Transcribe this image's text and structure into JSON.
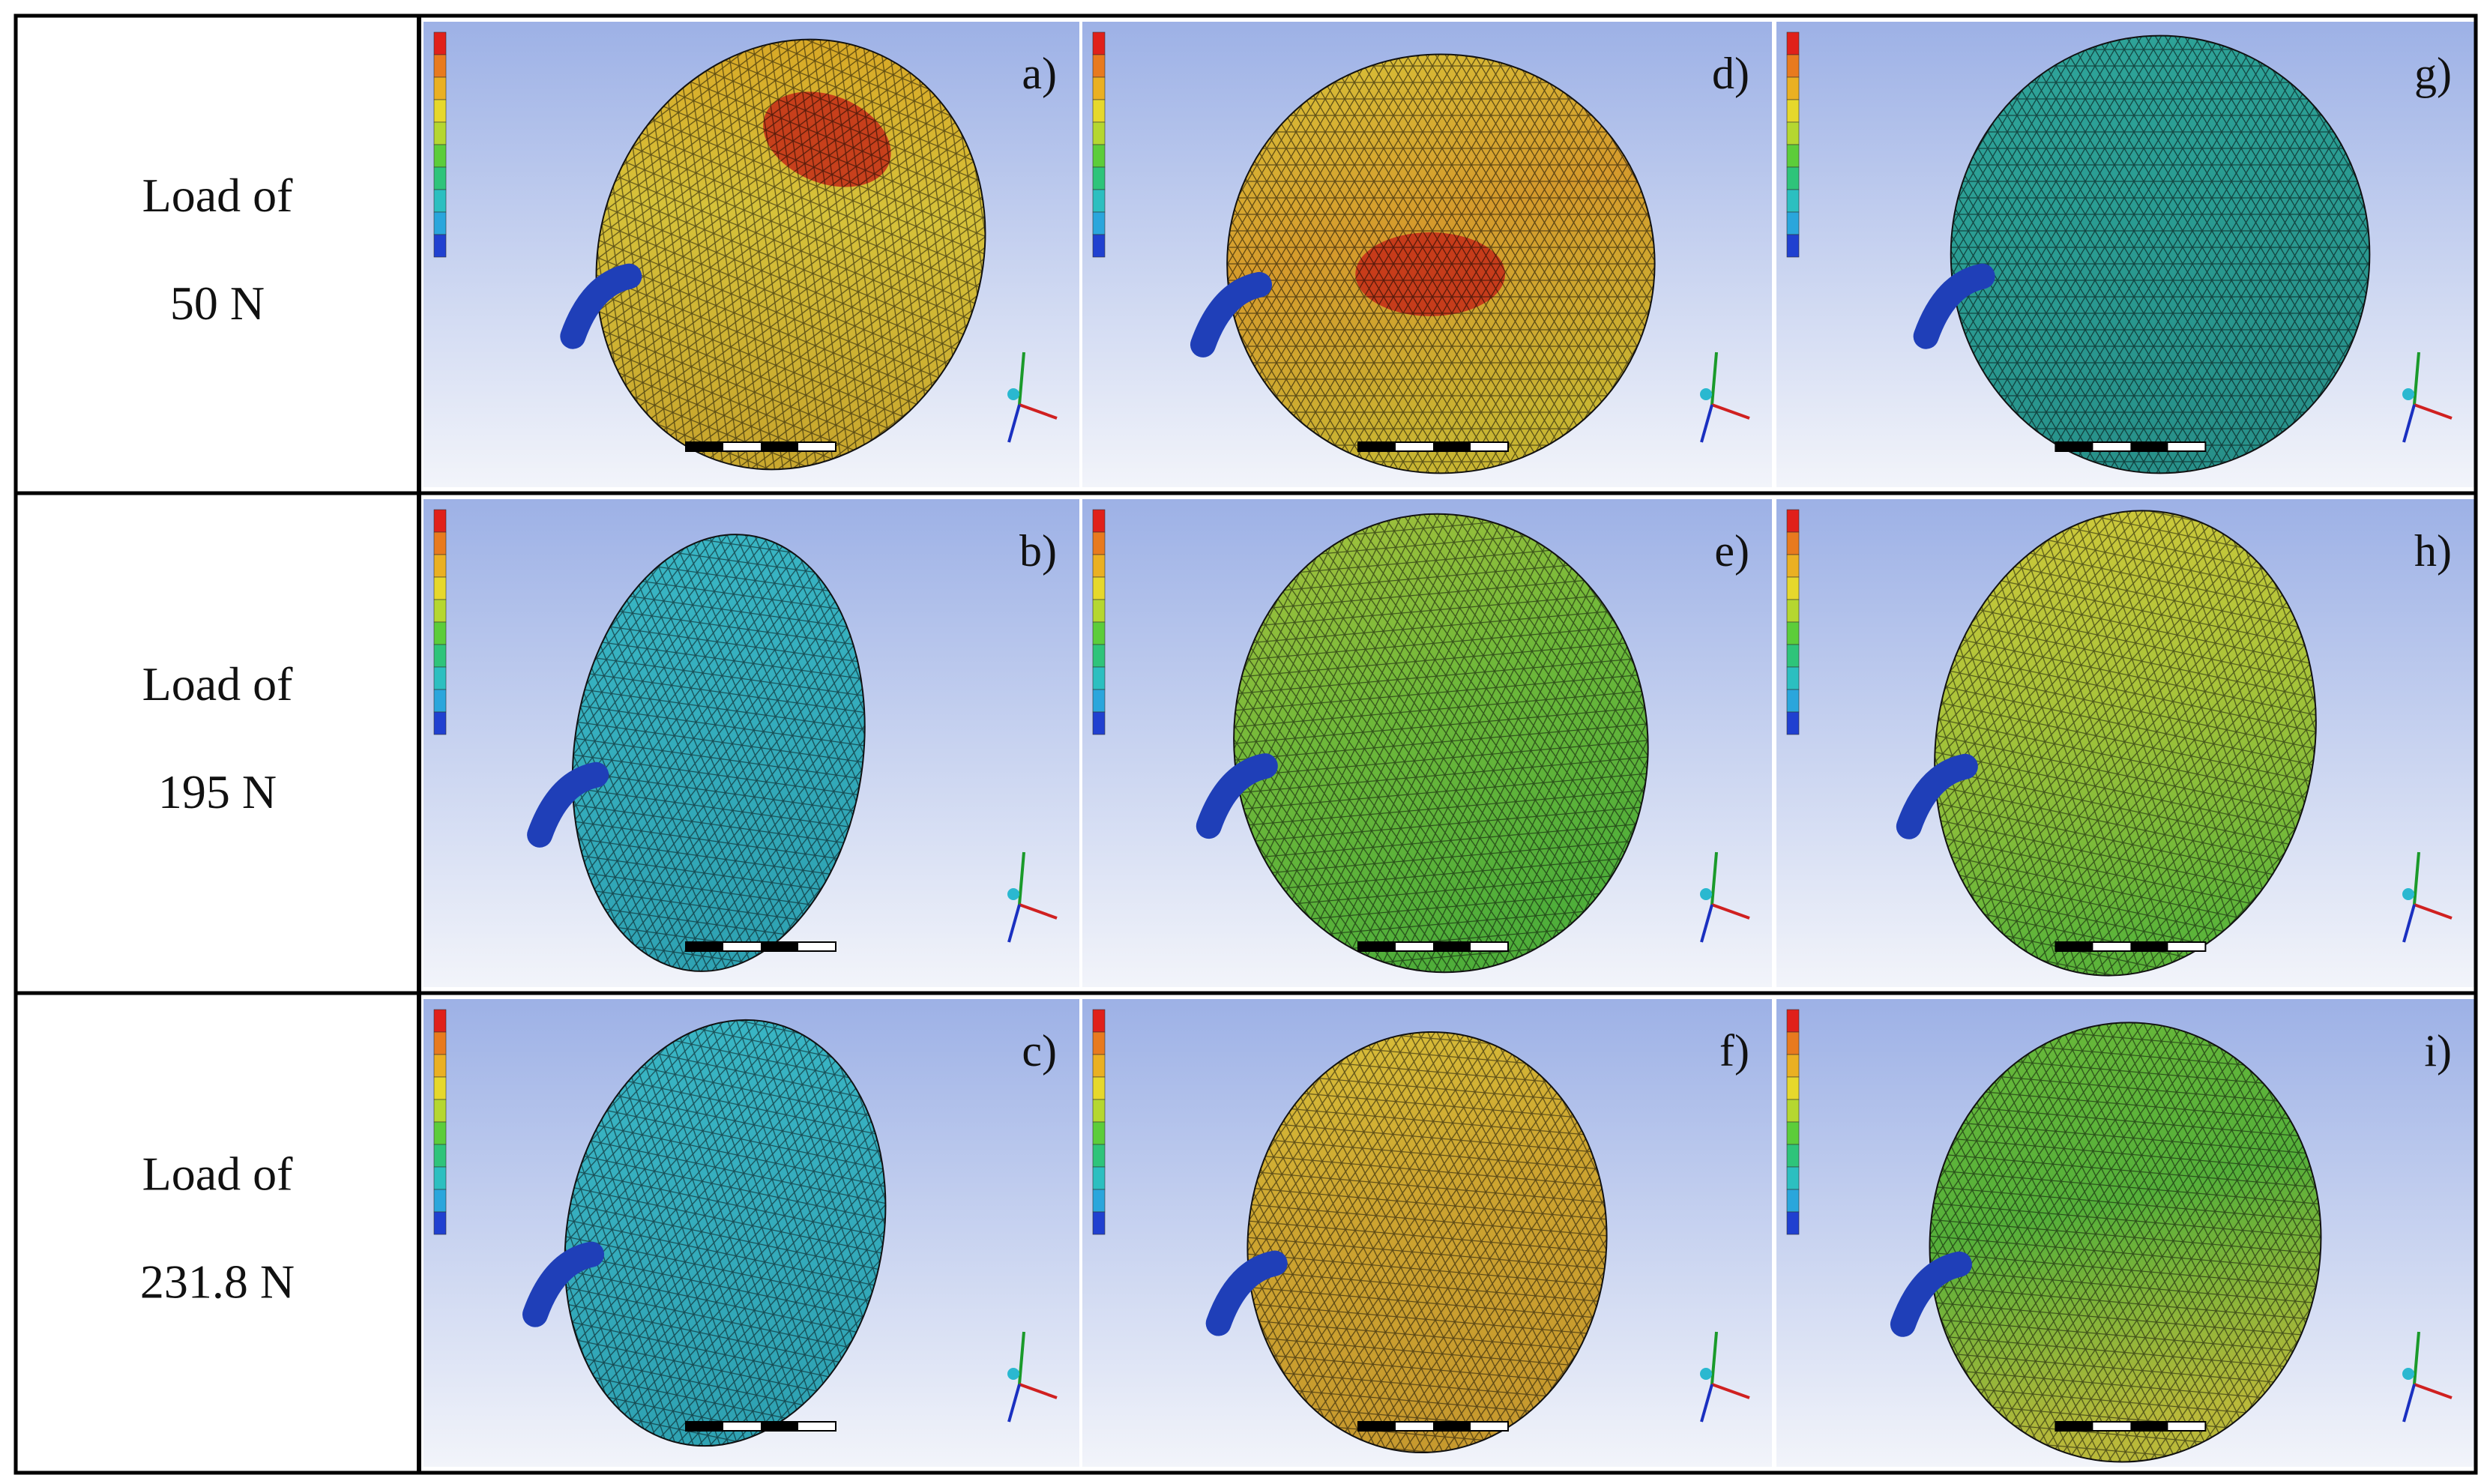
{
  "table": {
    "rows": [
      {
        "label": [
          "Load of",
          "50 N"
        ],
        "panels": [
          "a)",
          "d)",
          "g)"
        ]
      },
      {
        "label": [
          "Load of",
          "195 N"
        ],
        "panels": [
          "b)",
          "e)",
          "h)"
        ]
      },
      {
        "label": [
          "Load of",
          "231.8 N"
        ],
        "panels": [
          "c)",
          "f)",
          "i)"
        ]
      }
    ]
  }
}
